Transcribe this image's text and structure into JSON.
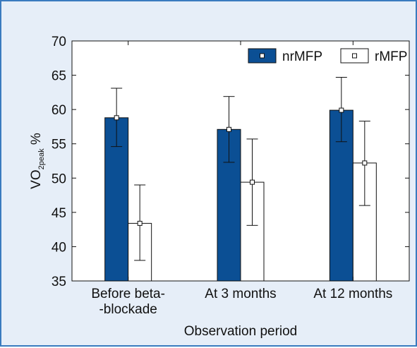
{
  "chart_data": {
    "type": "bar",
    "categories": [
      [
        "Before beta-",
        "-blockade"
      ],
      [
        "At 3 months"
      ],
      [
        "At 12 months"
      ]
    ],
    "series": [
      {
        "name": "nrMFP",
        "values": [
          58.8,
          57.1,
          59.9
        ],
        "err_low": [
          54.6,
          52.3,
          55.3
        ],
        "err_high": [
          63.1,
          61.9,
          64.7
        ],
        "color": "#0b4f94"
      },
      {
        "name": "rMFP",
        "values": [
          43.4,
          49.4,
          52.2
        ],
        "err_low": [
          38.0,
          43.1,
          46.0
        ],
        "err_high": [
          49.0,
          55.7,
          58.3
        ],
        "color": "#ffffff"
      }
    ],
    "xlabel": "Observation period",
    "ylabel": {
      "base": "VO",
      "sub": "2peak",
      "unit": " %"
    },
    "ylim": [
      35,
      70
    ],
    "yticks": [
      "35",
      "40",
      "45",
      "50",
      "55",
      "60",
      "65",
      "70"
    ],
    "legend_position": "top-right",
    "grid": false
  },
  "colors": {
    "background": "#e6eef8",
    "border": "#3a7bbf",
    "plot_bg": "#ffffff",
    "nrMFP": "#0b4f94"
  }
}
